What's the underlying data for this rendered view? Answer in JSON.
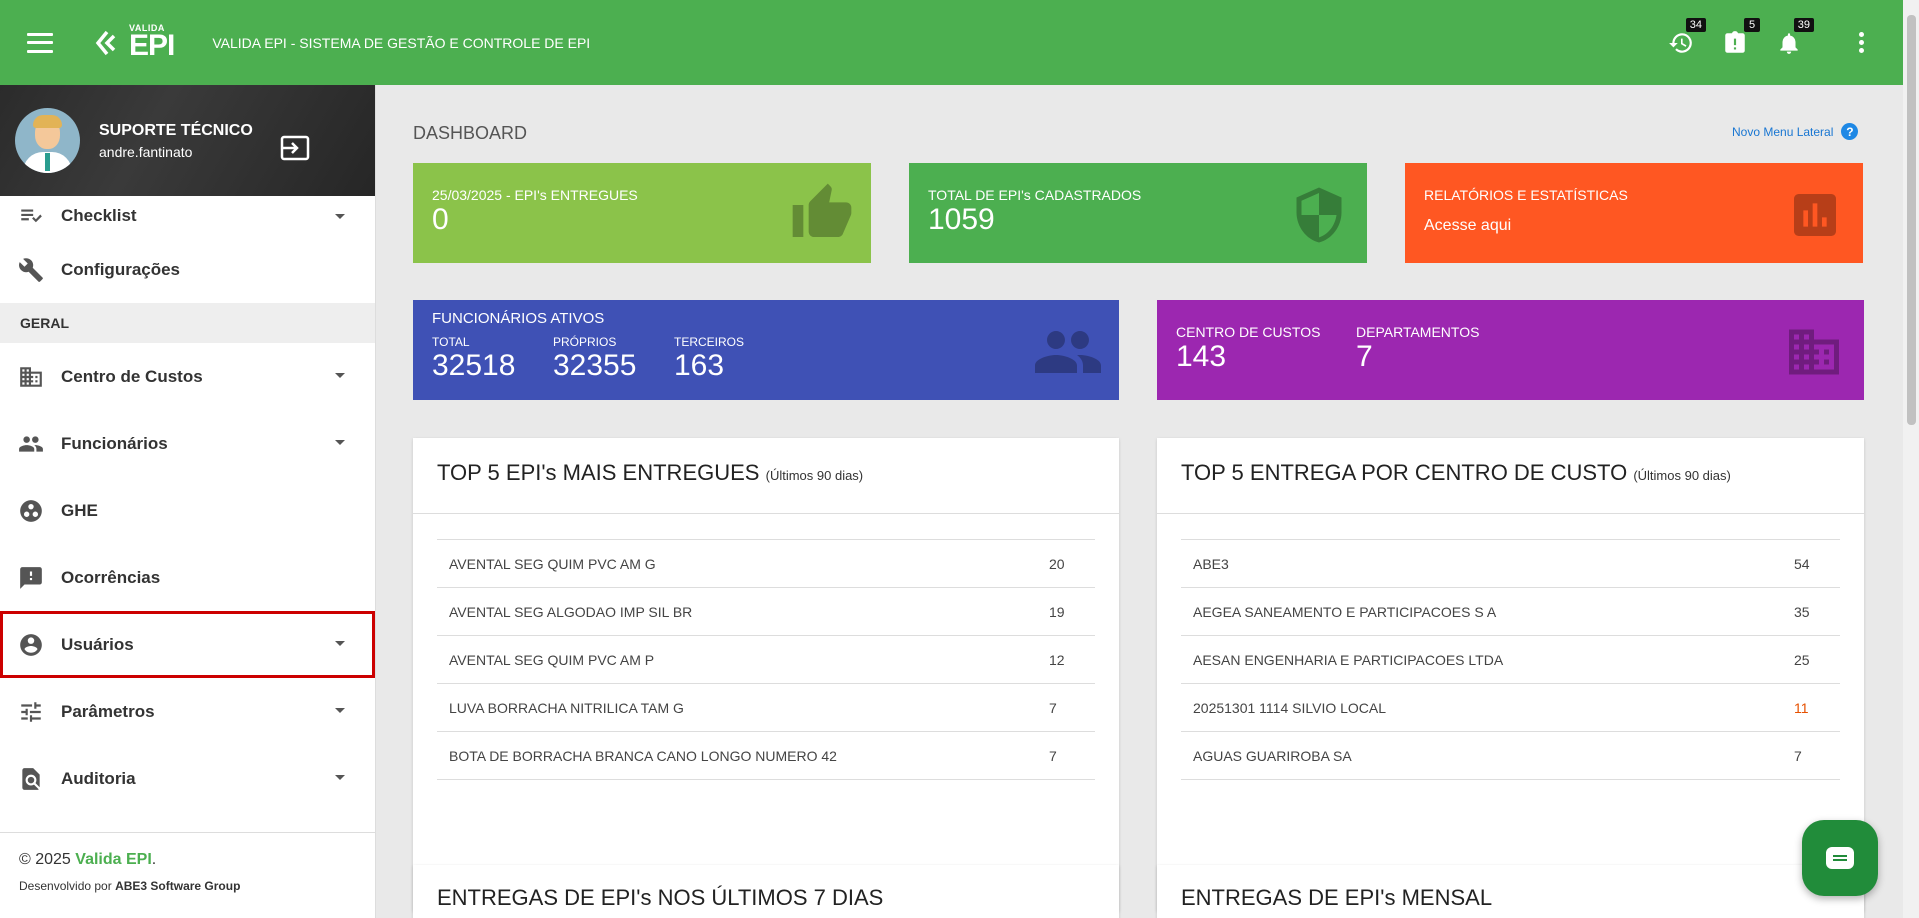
{
  "header": {
    "logo_small": "VALIDA",
    "logo_big": "EPI",
    "title": "VALIDA EPI - SISTEMA DE GESTÃO E CONTROLE DE EPI",
    "badges": {
      "history": "34",
      "alerts": "5",
      "notifications": "39"
    }
  },
  "profile": {
    "name": "SUPORTE TÉCNICO",
    "username": "andre.fantinato"
  },
  "sidebar": {
    "items_top": [
      {
        "label": "Checklist",
        "icon": "checklist-icon"
      },
      {
        "label": "Configurações",
        "icon": "wrench-icon"
      }
    ],
    "section": "GERAL",
    "items": [
      {
        "label": "Centro de Custos",
        "icon": "building-icon"
      },
      {
        "label": "Funcionários",
        "icon": "people-icon"
      },
      {
        "label": "GHE",
        "icon": "group-icon"
      },
      {
        "label": "Ocorrências",
        "icon": "report-icon"
      },
      {
        "label": "Usuários",
        "icon": "user-circle-icon"
      },
      {
        "label": "Parâmetros",
        "icon": "tune-icon"
      },
      {
        "label": "Auditoria",
        "icon": "search-doc-icon"
      }
    ],
    "footer_copy": "© 2025",
    "footer_brand": "Valida EPI",
    "footer_dot": ".",
    "footer_dev_prefix": "Desenvolvido por",
    "footer_dev_company": "ABE3 Software Group"
  },
  "dashboard": {
    "title": "DASHBOARD",
    "new_menu": "Novo Menu Lateral",
    "help": "?",
    "cards": {
      "delivered": {
        "label": "25/03/2025 - EPI's ENTREGUES",
        "value": "0",
        "color": "#8bc34a"
      },
      "registered": {
        "label": "TOTAL DE EPI's CADASTRADOS",
        "value": "1059",
        "color": "#4caf50"
      },
      "reports": {
        "label": "RELATÓRIOS E ESTATÍSTICAS",
        "link": "Acesse aqui",
        "color": "#ff5722"
      },
      "employees": {
        "label": "FUNCIONÁRIOS ATIVOS",
        "total_label": "TOTAL",
        "total": "32518",
        "own_label": "PRÓPRIOS",
        "own": "32355",
        "third_label": "TERCEIROS",
        "third": "163",
        "color": "#3f51b5"
      },
      "cost": {
        "cc_label": "CENTRO DE CUSTOS",
        "cc": "143",
        "dept_label": "DEPARTAMENTOS",
        "dept": "7",
        "color": "#9c27b0"
      }
    },
    "top_epis": {
      "title": "TOP 5 EPI's MAIS ENTREGUES",
      "subtitle": "(Últimos 90 dias)",
      "rows": [
        {
          "name": "AVENTAL SEG QUIM PVC AM G",
          "value": "20"
        },
        {
          "name": "AVENTAL SEG ALGODAO IMP SIL BR",
          "value": "19"
        },
        {
          "name": "AVENTAL SEG QUIM PVC AM P",
          "value": "12"
        },
        {
          "name": "LUVA BORRACHA NITRILICA TAM G",
          "value": "7"
        },
        {
          "name": "BOTA DE BORRACHA BRANCA CANO LONGO NUMERO 42",
          "value": "7"
        }
      ]
    },
    "top_cc": {
      "title": "TOP 5 ENTREGA POR CENTRO DE CUSTO",
      "subtitle": "(Últimos 90 dias)",
      "rows": [
        {
          "name": "ABE3",
          "value": "54"
        },
        {
          "name": "AEGEA SANEAMENTO E PARTICIPACOES S A",
          "value": "35"
        },
        {
          "name": "AESAN ENGENHARIA E PARTICIPACOES LTDA",
          "value": "25"
        },
        {
          "name": "20251301 1114 SILVIO LOCAL",
          "value": "11"
        },
        {
          "name": "AGUAS GUARIROBA SA",
          "value": "7"
        }
      ]
    },
    "last7": {
      "title": "ENTREGAS DE EPI's NOS ÚLTIMOS 7 DIAS"
    },
    "monthly": {
      "title": "ENTREGAS DE EPI's MENSAL"
    }
  }
}
